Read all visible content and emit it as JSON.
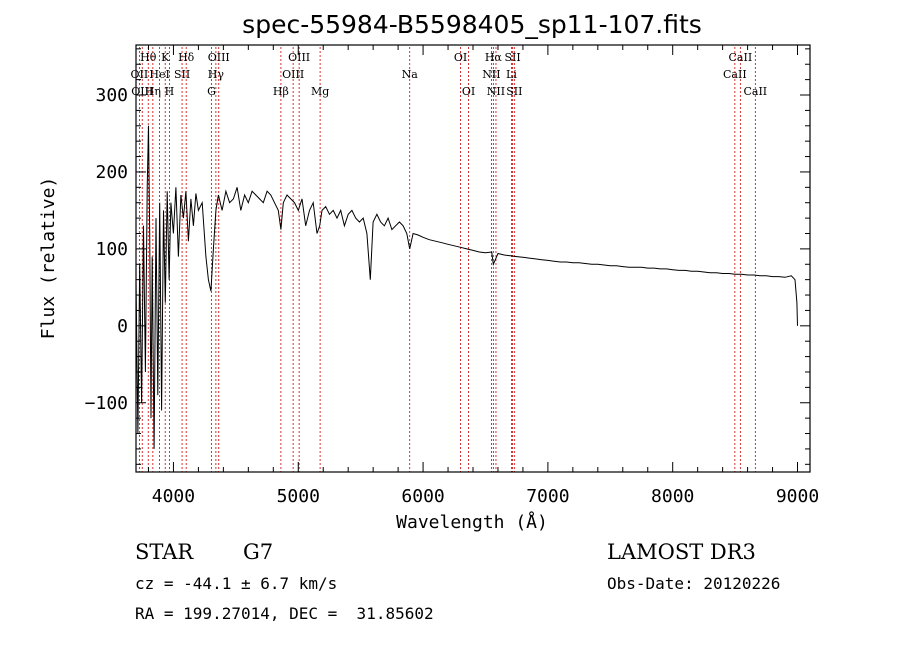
{
  "chart_data": {
    "type": "line",
    "title": "spec-55984-B5598405_sp11-107.fits",
    "xlabel": "Wavelength (Å)",
    "ylabel": "Flux (relative)",
    "xlim": [
      3700,
      9100
    ],
    "ylim": [
      -190,
      365
    ],
    "xticks": [
      4000,
      5000,
      6000,
      7000,
      8000,
      9000
    ],
    "yticks": [
      -100,
      0,
      100,
      200,
      300
    ],
    "series": [
      {
        "name": "spectrum",
        "color": "#000000",
        "x": [
          3700,
          3715,
          3730,
          3745,
          3760,
          3775,
          3790,
          3800,
          3810,
          3820,
          3830,
          3845,
          3860,
          3875,
          3890,
          3905,
          3920,
          3935,
          3950,
          3965,
          3980,
          4000,
          4020,
          4040,
          4060,
          4080,
          4100,
          4120,
          4140,
          4160,
          4180,
          4200,
          4230,
          4260,
          4280,
          4300,
          4320,
          4340,
          4360,
          4390,
          4420,
          4450,
          4480,
          4510,
          4540,
          4570,
          4600,
          4630,
          4660,
          4690,
          4720,
          4750,
          4780,
          4810,
          4840,
          4861,
          4880,
          4910,
          4940,
          4970,
          5000,
          5030,
          5060,
          5090,
          5120,
          5150,
          5172,
          5190,
          5220,
          5250,
          5280,
          5310,
          5340,
          5370,
          5400,
          5430,
          5460,
          5490,
          5520,
          5550,
          5577,
          5600,
          5630,
          5660,
          5690,
          5720,
          5750,
          5780,
          5810,
          5840,
          5870,
          5893,
          5920,
          5960,
          6000,
          6050,
          6100,
          6150,
          6200,
          6250,
          6300,
          6350,
          6400,
          6450,
          6500,
          6550,
          6563,
          6600,
          6650,
          6700,
          6750,
          6800,
          6850,
          6900,
          6950,
          7000,
          7050,
          7100,
          7150,
          7200,
          7250,
          7300,
          7350,
          7400,
          7450,
          7500,
          7550,
          7600,
          7650,
          7700,
          7750,
          7800,
          7850,
          7900,
          7950,
          8000,
          8050,
          8100,
          8150,
          8200,
          8250,
          8300,
          8350,
          8400,
          8450,
          8500,
          8550,
          8600,
          8650,
          8700,
          8750,
          8800,
          8850,
          8900,
          8950,
          8980,
          8995,
          9000
        ],
        "values": [
          60,
          -140,
          80,
          -100,
          130,
          -60,
          180,
          260,
          120,
          -120,
          90,
          -160,
          140,
          -90,
          160,
          -110,
          150,
          30,
          175,
          60,
          160,
          120,
          180,
          90,
          170,
          140,
          175,
          110,
          165,
          130,
          172,
          150,
          160,
          90,
          60,
          45,
          100,
          150,
          170,
          150,
          175,
          160,
          165,
          180,
          150,
          170,
          160,
          175,
          170,
          165,
          160,
          175,
          170,
          160,
          150,
          125,
          160,
          170,
          165,
          160,
          150,
          165,
          130,
          150,
          160,
          120,
          130,
          150,
          155,
          145,
          150,
          140,
          150,
          130,
          145,
          150,
          140,
          135,
          140,
          120,
          60,
          135,
          145,
          135,
          130,
          140,
          125,
          130,
          135,
          130,
          120,
          100,
          120,
          118,
          115,
          112,
          110,
          108,
          106,
          104,
          102,
          100,
          98,
          96,
          95,
          96,
          80,
          94,
          92,
          91,
          90,
          89,
          88,
          87,
          86,
          85,
          84,
          83,
          83,
          82,
          82,
          81,
          80,
          80,
          79,
          78,
          78,
          77,
          76,
          76,
          76,
          75,
          75,
          74,
          74,
          73,
          72,
          72,
          71,
          71,
          70,
          69,
          69,
          68,
          68,
          67,
          67,
          66,
          66,
          65,
          65,
          64,
          64,
          63,
          65,
          60,
          30,
          0
        ]
      }
    ],
    "spectral_lines": [
      {
        "label": "Hθ",
        "wavelength": 3798,
        "row": 1
      },
      {
        "label": "K",
        "wavelength": 3934,
        "row": 1
      },
      {
        "label": "Hδ",
        "wavelength": 4102,
        "row": 1
      },
      {
        "label": "OIII",
        "wavelength": 4363,
        "row": 1
      },
      {
        "label": "OIII",
        "wavelength": 5007,
        "row": 1
      },
      {
        "label": "OI",
        "wavelength": 6300,
        "row": 1
      },
      {
        "label": "Hα",
        "wavelength": 6563,
        "row": 1
      },
      {
        "label": "SII",
        "wavelength": 6717,
        "row": 1
      },
      {
        "label": "CaII",
        "wavelength": 8542,
        "row": 1
      },
      {
        "label": "OII",
        "wavelength": 3727,
        "row": 2
      },
      {
        "label": "HeI",
        "wavelength": 3889,
        "row": 2
      },
      {
        "label": "SII",
        "wavelength": 4069,
        "row": 2
      },
      {
        "label": "Hγ",
        "wavelength": 4340,
        "row": 2
      },
      {
        "label": "OIII",
        "wavelength": 4959,
        "row": 2
      },
      {
        "label": "Na",
        "wavelength": 5893,
        "row": 2
      },
      {
        "label": "NII",
        "wavelength": 6548,
        "row": 2
      },
      {
        "label": "Li",
        "wavelength": 6708,
        "row": 2
      },
      {
        "label": "CaII",
        "wavelength": 8498,
        "row": 2
      },
      {
        "label": "OIII",
        "wavelength": 3750,
        "row": 3
      },
      {
        "label": "Hη",
        "wavelength": 3835,
        "row": 3
      },
      {
        "label": "H",
        "wavelength": 3968,
        "row": 3
      },
      {
        "label": "G",
        "wavelength": 4305,
        "row": 3
      },
      {
        "label": "Hβ",
        "wavelength": 4861,
        "row": 3
      },
      {
        "label": "Mg",
        "wavelength": 5175,
        "row": 3
      },
      {
        "label": "OI",
        "wavelength": 6364,
        "row": 3
      },
      {
        "label": "NII",
        "wavelength": 6584,
        "row": 3
      },
      {
        "label": "SII",
        "wavelength": 6731,
        "row": 3
      },
      {
        "label": "CaII",
        "wavelength": 8662,
        "row": 3
      }
    ]
  },
  "info": {
    "class_label": "STAR",
    "subclass": "G7",
    "survey": "LAMOST DR3",
    "cz_text": "cz = -44.1 ± 6.7 km/s",
    "obs_date_text": "Obs-Date: 20120226",
    "coords_text": "RA = 199.27014, DEC =  31.85602"
  },
  "colors": {
    "spectrum": "#000000",
    "line_marker": "#cc0000",
    "axes": "#000000"
  }
}
